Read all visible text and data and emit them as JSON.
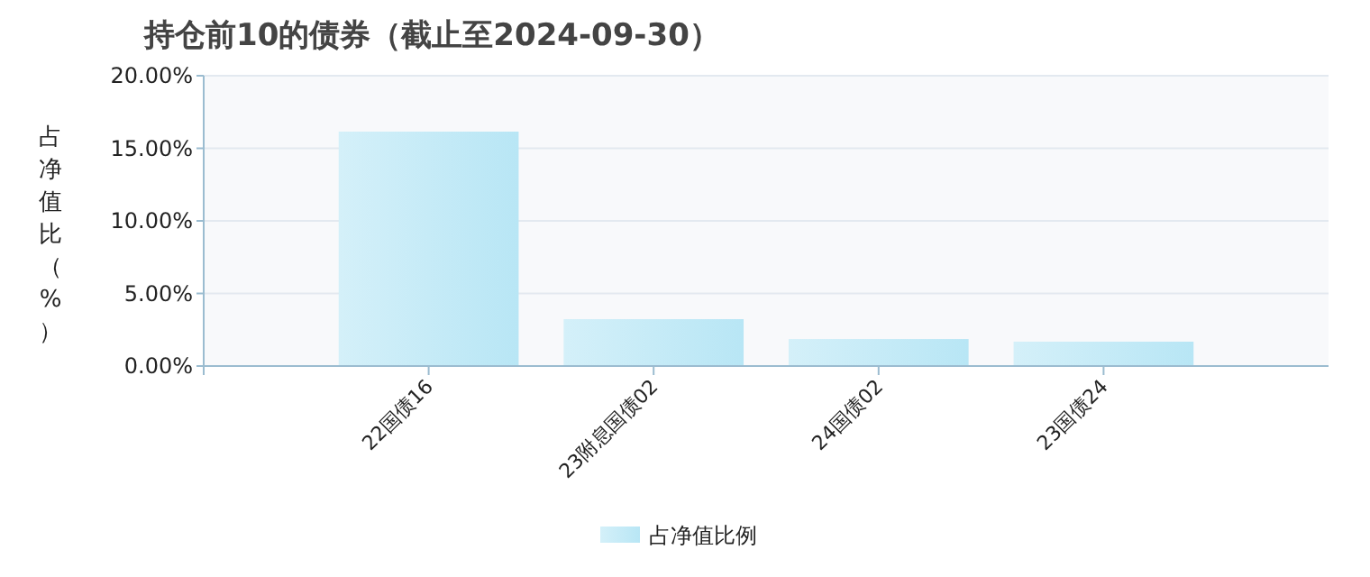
{
  "chart_data": {
    "type": "bar",
    "title": "持仓前10的债券（截止至2024-09-30）",
    "ylabel": "占净值比（%）",
    "categories": [
      "22国债16",
      "23附息国债02",
      "24国债02",
      "23国债24"
    ],
    "series": [
      {
        "name": "占净值比例",
        "color": "#b8e6f5",
        "values": [
          16.15,
          3.23,
          1.86,
          1.68
        ]
      }
    ],
    "ylim": [
      0,
      20
    ],
    "yticks": [
      {
        "value": 0,
        "label": "0.00%"
      },
      {
        "value": 5,
        "label": "5.00%"
      },
      {
        "value": 10,
        "label": "10.00%"
      },
      {
        "value": 15,
        "label": "15.00%"
      },
      {
        "value": 20,
        "label": "20.00%"
      }
    ],
    "grid": "y",
    "legend": "bottom"
  }
}
